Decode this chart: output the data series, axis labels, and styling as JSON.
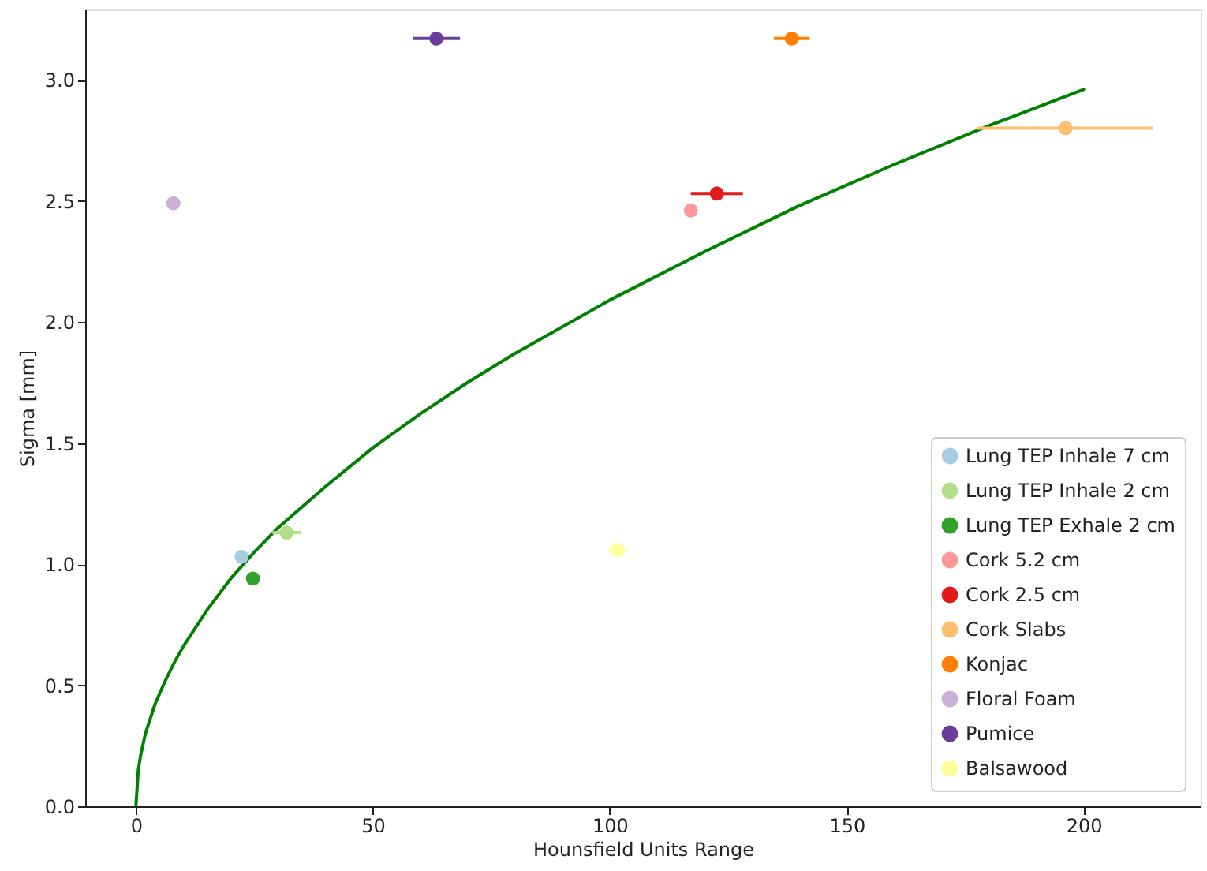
{
  "chart_data": {
    "type": "scatter",
    "xlabel": "Hounsfield Units Range",
    "ylabel": "Sigma [mm]",
    "xlim": [
      -10.7,
      224.7
    ],
    "ylim": [
      0,
      3.29
    ],
    "xticks": [
      0,
      50,
      100,
      150,
      200
    ],
    "yticks": [
      {
        "value": 0,
        "label": "0.0"
      },
      0.5,
      {
        "value": 1,
        "label": "1.0"
      },
      1.5,
      {
        "value": 2,
        "label": "2.0"
      },
      2.5,
      {
        "value": 3,
        "label": "3.0"
      }
    ],
    "grid": false,
    "legend": "bottom right",
    "series": [
      {
        "type": "line",
        "color": "#008000",
        "line_style": "solid",
        "x": [
          0,
          0.5,
          1,
          2,
          4,
          6,
          8,
          10,
          15,
          20,
          25,
          30,
          40,
          50,
          60,
          70,
          80,
          100,
          120,
          140,
          160,
          180,
          200
        ],
        "values": [
          0,
          0.15,
          0.21,
          0.3,
          0.42,
          0.51,
          0.59,
          0.66,
          0.81,
          0.94,
          1.05,
          1.15,
          1.32,
          1.48,
          1.62,
          1.75,
          1.87,
          2.09,
          2.29,
          2.48,
          2.65,
          2.81,
          2.96
        ]
      },
      {
        "name": "Lung TEP Inhale 7 cm",
        "color": "#a6cee3",
        "marker": "circle",
        "x": [
          22.3
        ],
        "values": [
          1.03
        ],
        "xerrors": [
          null
        ]
      },
      {
        "name": "Lung TEP Inhale 2 cm",
        "color": "#b2df8a",
        "marker": "circle",
        "x": [
          31.8
        ],
        "values": [
          1.13
        ],
        "xerrors": [
          3
        ]
      },
      {
        "name": "Lung TEP Exhale 2 cm",
        "color": "#33a02c",
        "marker": "circle",
        "x": [
          24.7
        ],
        "values": [
          0.94
        ],
        "xerrors": [
          null
        ]
      },
      {
        "name": "Cork 5.2 cm",
        "color": "#fb9a99",
        "marker": "circle",
        "x": [
          117.1
        ],
        "values": [
          2.46
        ],
        "xerrors": [
          null
        ]
      },
      {
        "name": "Cork 2.5 cm",
        "color": "#e31a1c",
        "marker": "circle",
        "x": [
          122.6
        ],
        "values": [
          2.53
        ],
        "xerrors": [
          5.5
        ]
      },
      {
        "name": "Cork Slabs",
        "color": "#fdbf6f",
        "marker": "circle",
        "x": [
          196.2
        ],
        "values": [
          2.8
        ],
        "xerrors": [
          [
            177.4,
            214.7
          ]
        ]
      },
      {
        "name": "Konjac",
        "color": "#ff7f00",
        "marker": "circle",
        "x": [
          138.4
        ],
        "values": [
          3.17
        ],
        "xerrors": [
          3.8
        ]
      },
      {
        "name": "Floral Foam",
        "color": "#cab2d6",
        "marker": "circle",
        "x": [
          7.9
        ],
        "values": [
          2.49
        ],
        "xerrors": [
          null
        ]
      },
      {
        "name": "Pumice",
        "color": "#6a3d9a",
        "marker": "circle",
        "x": [
          63.4
        ],
        "values": [
          3.17
        ],
        "xerrors": [
          5
        ]
      },
      {
        "name": "Balsawood",
        "color": "#ffff99",
        "marker": "circle",
        "x": [
          101.7
        ],
        "values": [
          1.06
        ],
        "xerrors": [
          2
        ]
      }
    ]
  }
}
